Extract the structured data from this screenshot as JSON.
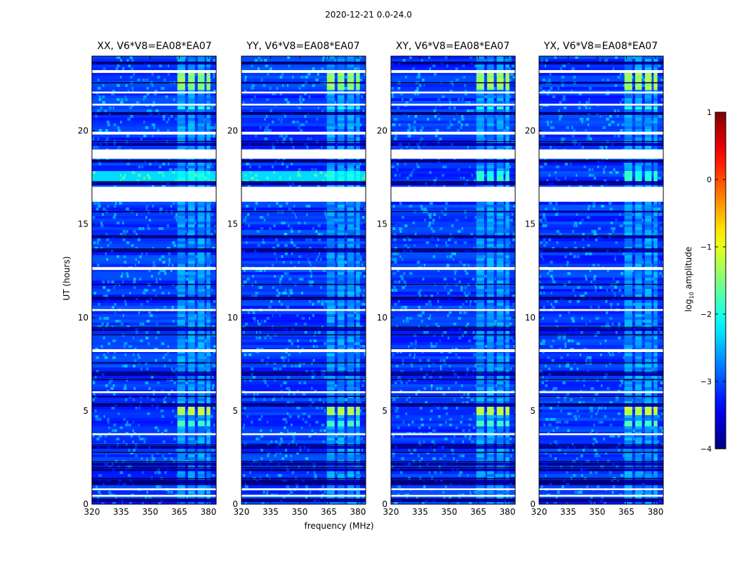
{
  "chart_data": {
    "type": "heatmap",
    "suptitle": "2020-12-21 0.0-24.0",
    "xlabel": "frequency (MHz)",
    "ylabel": "UT (hours)",
    "xlim": [
      320,
      384
    ],
    "ylim": [
      0,
      24
    ],
    "xticks": [
      320,
      335,
      350,
      365,
      380
    ],
    "yticks": [
      0,
      5,
      10,
      15,
      20
    ],
    "panels": [
      {
        "title": "XX, V6*V8=EA08*EA07",
        "pol": "XX"
      },
      {
        "title": "YY, V6*V8=EA08*EA07",
        "pol": "YY"
      },
      {
        "title": "XY, V6*V8=EA08*EA07",
        "pol": "XY"
      },
      {
        "title": "YX, V6*V8=EA08*EA07",
        "pol": "YX"
      }
    ],
    "colorbar": {
      "label_prefix": "log",
      "label_sub": "10",
      "label_suffix": " amplitude",
      "range": [
        -4,
        1
      ],
      "ticks": [
        -4,
        -3,
        -2,
        -1,
        0,
        1
      ],
      "colormap": "jet"
    },
    "flagged_ut_ranges": [
      [
        16.2,
        17.0
      ],
      [
        18.5,
        19.0
      ],
      [
        23.1,
        23.25
      ],
      [
        12.55,
        12.7
      ],
      [
        10.35,
        10.45
      ],
      [
        8.15,
        8.3
      ],
      [
        5.95,
        6.05
      ],
      [
        3.7,
        3.8
      ],
      [
        0.75,
        0.85
      ],
      [
        0.4,
        0.5
      ],
      [
        19.8,
        19.95
      ],
      [
        22.0,
        22.1
      ],
      [
        21.35,
        21.45
      ]
    ],
    "dark_ut_ranges": [
      [
        18.3,
        18.45
      ],
      [
        19.3,
        19.45
      ],
      [
        17.2,
        17.3
      ],
      [
        15.6,
        15.7
      ],
      [
        14.3,
        14.4
      ],
      [
        13.6,
        13.7
      ],
      [
        11.7,
        11.8
      ],
      [
        11.0,
        11.1
      ],
      [
        9.4,
        9.5
      ],
      [
        9.0,
        9.1
      ],
      [
        7.5,
        7.6
      ],
      [
        7.0,
        7.1
      ],
      [
        6.6,
        6.7
      ],
      [
        5.7,
        5.8
      ],
      [
        5.3,
        5.4
      ],
      [
        3.1,
        3.2
      ],
      [
        2.7,
        2.8
      ],
      [
        2.2,
        2.3
      ],
      [
        1.9,
        2.0
      ],
      [
        1.3,
        1.4
      ],
      [
        1.1,
        1.2
      ],
      [
        0.2,
        0.3
      ],
      [
        20.9,
        21.0
      ],
      [
        22.5,
        22.6
      ],
      [
        23.6,
        23.7
      ]
    ],
    "bright_band_mhz": [
      364,
      381
    ],
    "bright_ut_ranges": [
      {
        "range": [
          4.8,
          5.4
        ],
        "level": -1.4
      },
      {
        "range": [
          4.2,
          4.5
        ],
        "level": -2.0
      },
      {
        "range": [
          17.3,
          17.9
        ],
        "level": -2.2
      },
      {
        "range": [
          21.2,
          21.4
        ],
        "level": -2.2
      },
      {
        "range": [
          22.3,
          23.3
        ],
        "level": -1.6
      }
    ]
  }
}
